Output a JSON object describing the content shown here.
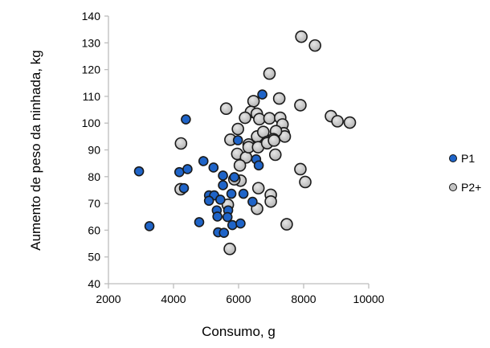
{
  "chart_data": {
    "type": "scatter",
    "xlabel": "Consumo, g",
    "ylabel": "Aumento de peso da ninhada, kg",
    "xlim": [
      2000,
      10000
    ],
    "ylim": [
      40,
      140
    ],
    "xticks": [
      2000,
      4000,
      6000,
      8000,
      10000
    ],
    "yticks": [
      40,
      50,
      60,
      70,
      80,
      90,
      100,
      110,
      120,
      130,
      140
    ],
    "grid": false,
    "legend_position": "right",
    "series": [
      {
        "name": "P2+",
        "color": "#c4c4c4",
        "points": [
          [
            5620,
            105.4
          ],
          [
            6460,
            108.2
          ],
          [
            6380,
            104.2
          ],
          [
            6560,
            103.5
          ],
          [
            6200,
            102.0
          ],
          [
            6640,
            101.5
          ],
          [
            5980,
            97.8
          ],
          [
            5750,
            93.8
          ],
          [
            4230,
            92.4
          ],
          [
            6310,
            92.0
          ],
          [
            6570,
            95.0
          ],
          [
            6760,
            96.7
          ],
          [
            5960,
            88.5
          ],
          [
            6230,
            87.2
          ],
          [
            6040,
            84.2
          ],
          [
            6310,
            91.0
          ],
          [
            6600,
            91.0
          ],
          [
            6060,
            78.5
          ],
          [
            4220,
            75.3
          ],
          [
            6610,
            75.7
          ],
          [
            6570,
            68.0
          ],
          [
            5670,
            69.5
          ],
          [
            5730,
            53.0
          ],
          [
            7930,
            132.3
          ],
          [
            8350,
            129.0
          ],
          [
            6950,
            118.5
          ],
          [
            7250,
            109.2
          ],
          [
            7900,
            106.7
          ],
          [
            8840,
            102.6
          ],
          [
            9040,
            100.7
          ],
          [
            9420,
            100.2
          ],
          [
            6950,
            101.8
          ],
          [
            7280,
            102.0
          ],
          [
            7350,
            99.5
          ],
          [
            7390,
            96.2
          ],
          [
            7420,
            95.0
          ],
          [
            7150,
            97.0
          ],
          [
            7070,
            94.0
          ],
          [
            6880,
            93.0
          ],
          [
            7130,
            88.2
          ],
          [
            6880,
            92.5
          ],
          [
            7090,
            93.5
          ],
          [
            7900,
            82.8
          ],
          [
            8050,
            78.0
          ],
          [
            6990,
            73.2
          ],
          [
            6990,
            70.7
          ],
          [
            7480,
            62.2
          ],
          [
            5870,
            79.0
          ]
        ]
      },
      {
        "name": "P1",
        "color": "#1f64c8",
        "points": [
          [
            2940,
            82.0
          ],
          [
            3260,
            61.5
          ],
          [
            4180,
            81.7
          ],
          [
            4430,
            82.8
          ],
          [
            4320,
            75.7
          ],
          [
            4920,
            85.8
          ],
          [
            5230,
            83.4
          ],
          [
            5520,
            80.4
          ],
          [
            5520,
            76.8
          ],
          [
            5870,
            79.8
          ],
          [
            5780,
            73.6
          ],
          [
            6150,
            73.6
          ],
          [
            5090,
            73.0
          ],
          [
            5250,
            73.0
          ],
          [
            5090,
            71.0
          ],
          [
            5440,
            71.4
          ],
          [
            6430,
            70.6
          ],
          [
            5330,
            67.4
          ],
          [
            5680,
            67.4
          ],
          [
            5350,
            65.1
          ],
          [
            5660,
            64.9
          ],
          [
            4790,
            63.0
          ],
          [
            5810,
            61.9
          ],
          [
            6060,
            62.5
          ],
          [
            5370,
            59.2
          ],
          [
            5550,
            59.0
          ],
          [
            5980,
            93.6
          ],
          [
            6540,
            86.5
          ],
          [
            6620,
            84.2
          ],
          [
            4380,
            101.4
          ],
          [
            6730,
            110.7
          ]
        ]
      }
    ]
  }
}
